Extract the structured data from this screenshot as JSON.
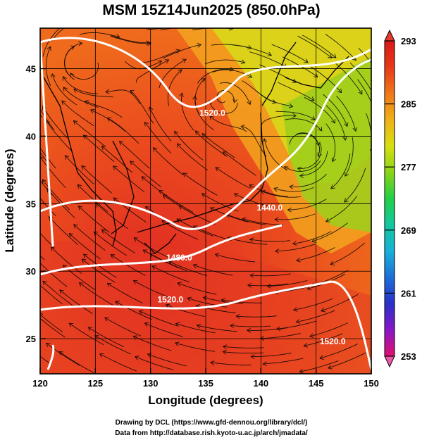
{
  "title": "MSM 15Z14Jun2025 (850.0hPa)",
  "xlabel": "Longitude (degrees)",
  "ylabel": "Latitude  (degrees)",
  "credits": [
    "Drawing by DCL (https://www.gfd-dennou.org/library/dcl/)",
    "Data from http://database.rish.kyoto-u.ac.jp/arch/jmadata/"
  ],
  "chart_data": {
    "type": "heatmap",
    "variable": "temperature with geopotential height contours and streamlines",
    "x_range": [
      120,
      150
    ],
    "y_range": [
      22.4,
      48
    ],
    "x_ticks": [
      120,
      125,
      130,
      135,
      140,
      145,
      150
    ],
    "y_ticks": [
      25,
      30,
      35,
      40,
      45
    ],
    "x_tick_labels": [
      "120",
      "125",
      "130",
      "135",
      "140",
      "145",
      "150"
    ],
    "y_tick_labels": [
      "25",
      "30",
      "35",
      "40",
      "45"
    ],
    "colorbar": {
      "min": 253,
      "max": 293,
      "tick_values": [
        293,
        285,
        277,
        269,
        261,
        253
      ],
      "tick_labels": [
        "293",
        "285",
        "277",
        "269",
        "261",
        "253"
      ],
      "colors": [
        "#e0106e",
        "#8a16c8",
        "#2a30c8",
        "#1d6ed8",
        "#18b0d8",
        "#12c8a0",
        "#22d048",
        "#8ad418",
        "#d8e010",
        "#f0b018",
        "#f07818",
        "#e83818",
        "#d81818"
      ]
    },
    "contour_labels": [
      {
        "text": "1520.0",
        "lon": 135.6,
        "lat": 41.5
      },
      {
        "text": "1440.0",
        "lon": 140.8,
        "lat": 34.5
      },
      {
        "text": "1480.0",
        "lon": 132.6,
        "lat": 30.8
      },
      {
        "text": "1520.0",
        "lon": 131.8,
        "lat": 27.7
      },
      {
        "text": "1520.0",
        "lon": 146.5,
        "lat": 24.6
      }
    ]
  }
}
